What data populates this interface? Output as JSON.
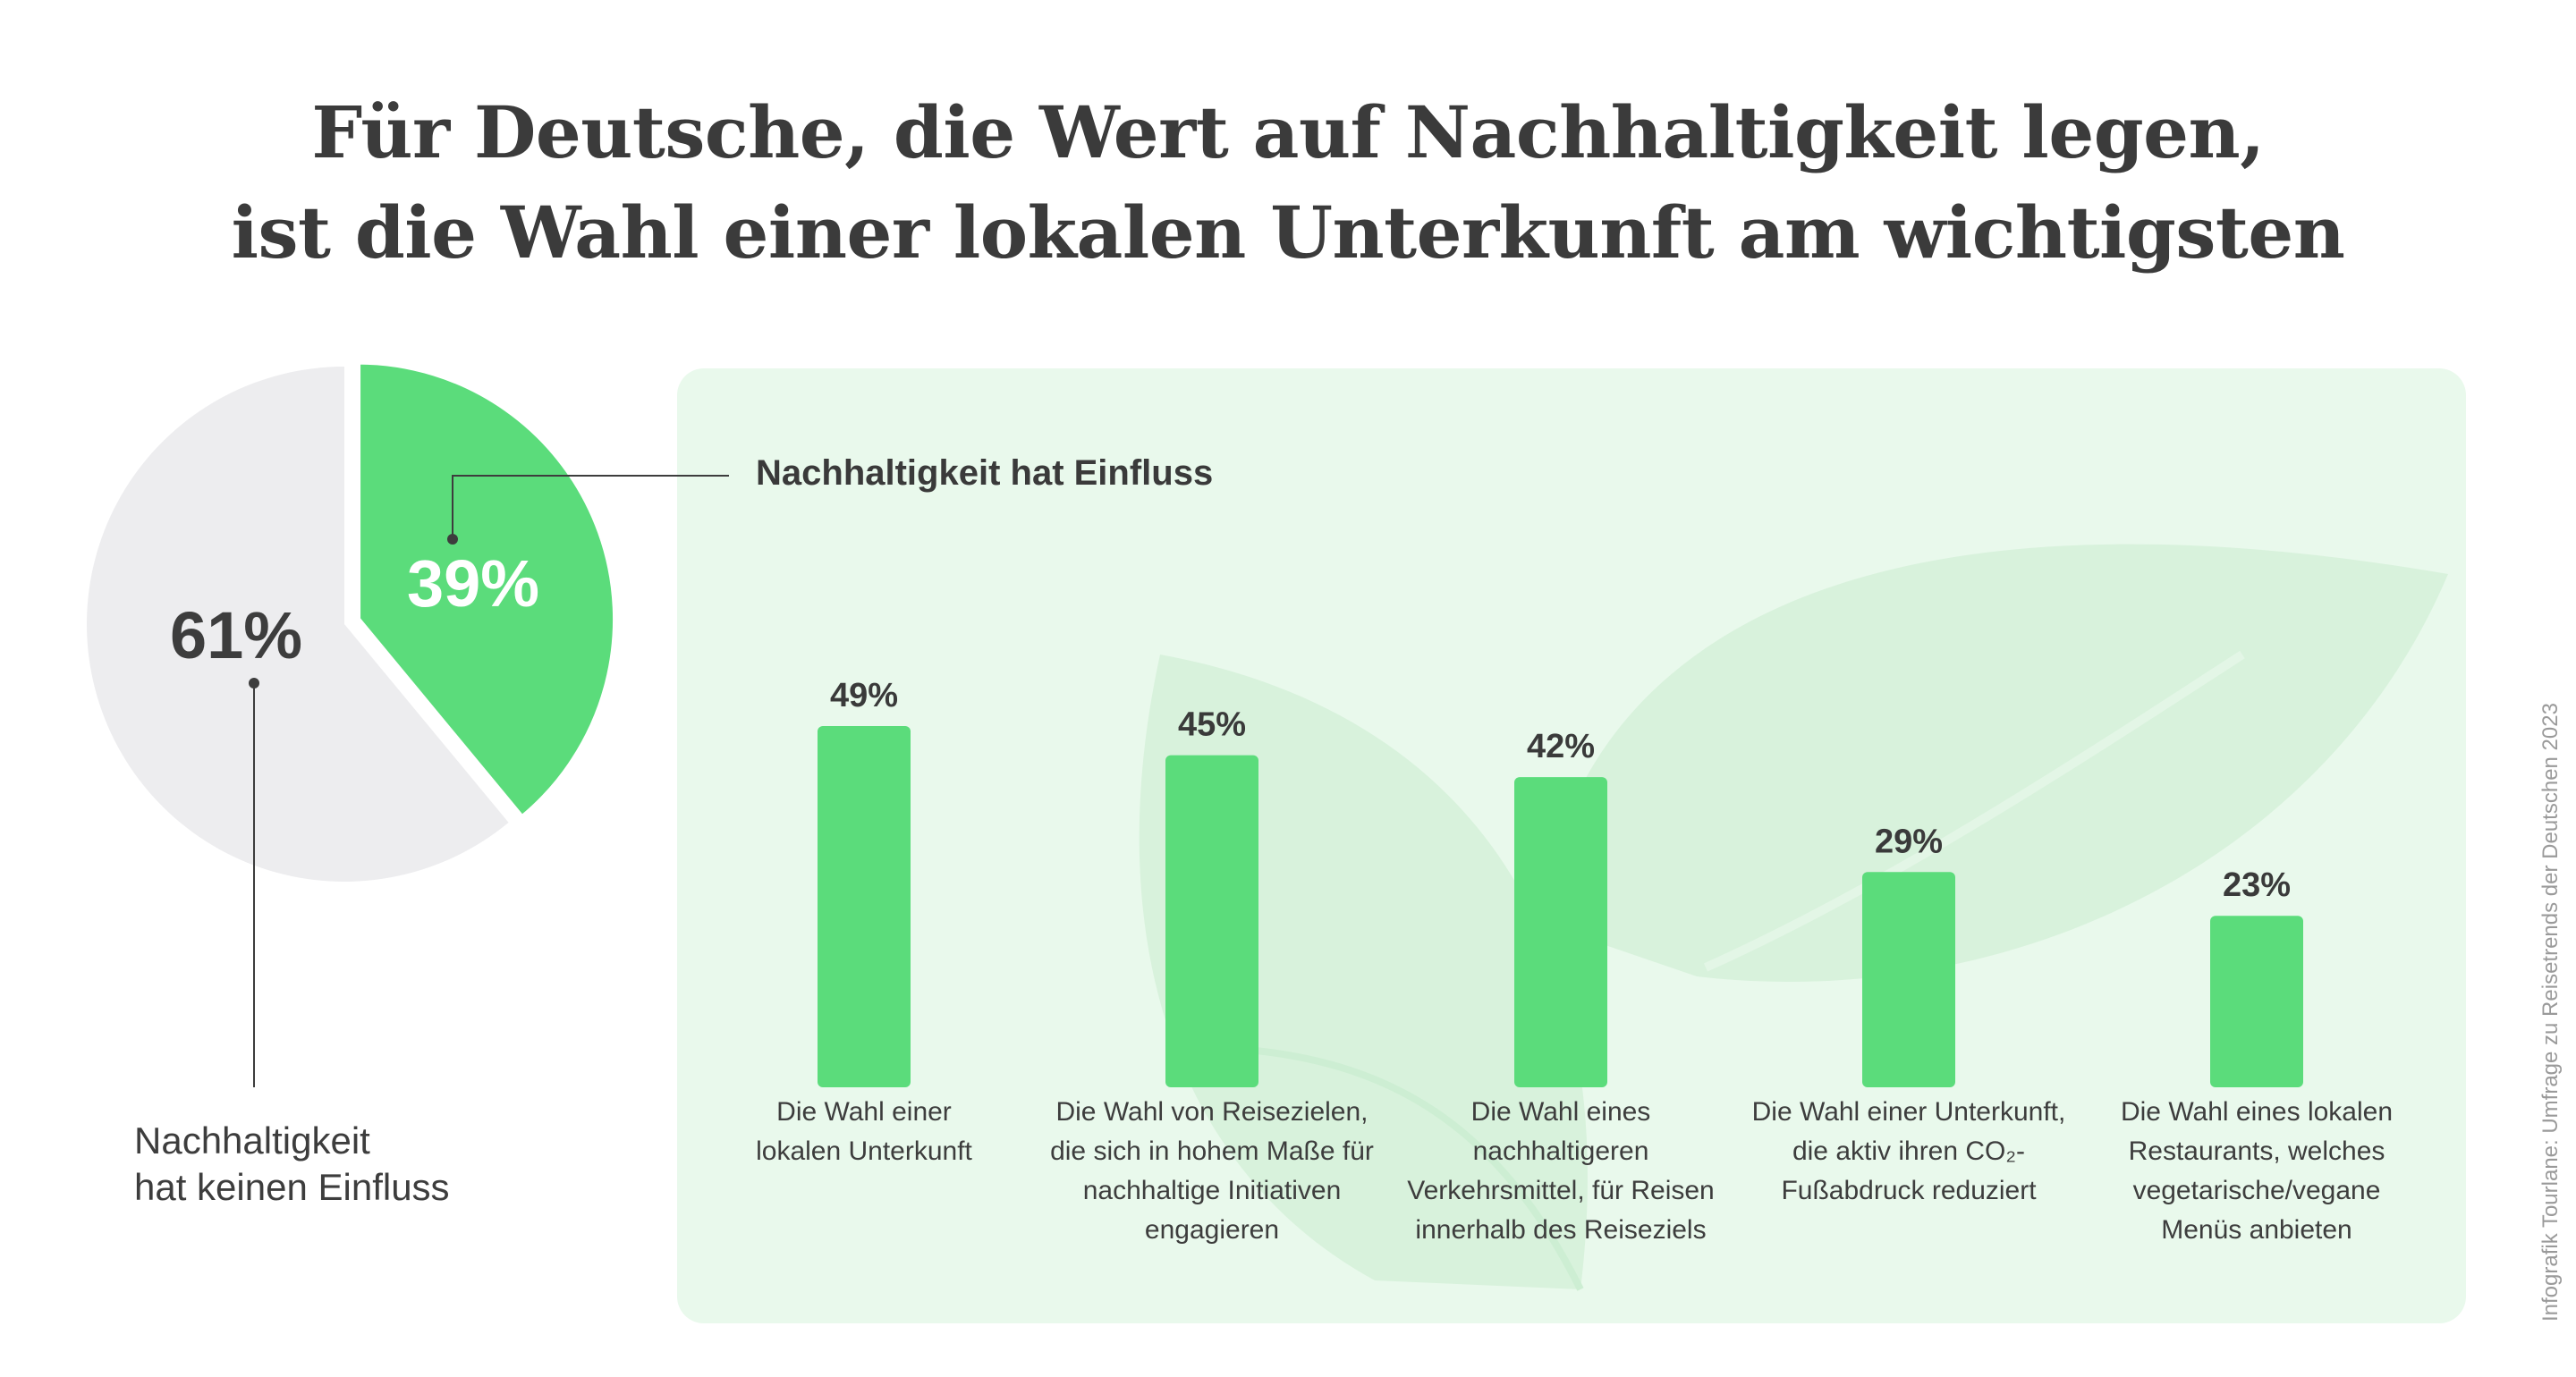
{
  "title": {
    "line1": "Für Deutsche, die Wert auf Nachhaltigkeit legen,",
    "line2": "ist die Wahl einer lokalen Unterkunft am wichtigsten"
  },
  "pie": {
    "slices": [
      {
        "label_line1": "Nachhaltigkeit",
        "label_line2": "hat keinen Einfluss",
        "value": 61,
        "display": "61%",
        "color": "#ededef"
      },
      {
        "label": "Nachhaltigkeit hat Einfluss",
        "value": 39,
        "display": "39%",
        "color": "#5bdc7b"
      }
    ]
  },
  "panel": {
    "heading": "Nachhaltigkeit hat Einfluss",
    "background": "#e9f9ec"
  },
  "chart_data": [
    {
      "type": "pie",
      "categories": [
        "Nachhaltigkeit hat keinen Einfluss",
        "Nachhaltigkeit hat Einfluss"
      ],
      "values": [
        61,
        39
      ],
      "unit": "%"
    },
    {
      "type": "bar",
      "title": "Nachhaltigkeit hat Einfluss",
      "categories": [
        [
          "Die Wahl einer",
          "lokalen Unterkunft"
        ],
        [
          "Die Wahl von Reisezielen,",
          "die sich in hohem Maße für",
          "nachhaltige Initiativen",
          "engagieren"
        ],
        [
          "Die Wahl eines",
          "nachhaltigeren",
          "Verkehrsmittel, für Reisen",
          "innerhalb des Reiseziels"
        ],
        [
          "Die Wahl einer Unterkunft,",
          "die aktiv ihren CO₂-",
          "Fußabdruck reduziert"
        ],
        [
          "Die Wahl eines lokalen",
          "Restaurants, welches",
          "vegetarische/vegane",
          "Menüs anbieten"
        ]
      ],
      "values": [
        49,
        45,
        42,
        29,
        23
      ],
      "labels": [
        "49%",
        "45%",
        "42%",
        "29%",
        "23%"
      ],
      "unit": "%",
      "ylim": [
        0,
        49
      ],
      "bar_color": "#5bdc7b"
    }
  ],
  "source": "Infografik Tourlane: Umfrage zu Reisetrends der Deutschen 2023",
  "colors": {
    "accent": "#5bdc7b",
    "text": "#3d3d3d",
    "leaf": "#d8f2dc"
  }
}
